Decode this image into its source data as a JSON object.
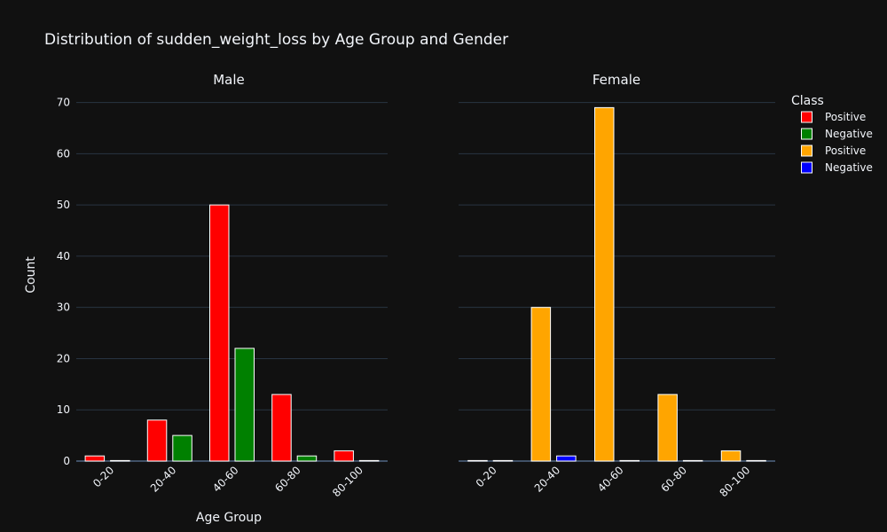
{
  "chart_data": {
    "type": "bar",
    "title": "Distribution of sudden_weight_loss by Age Group and Gender",
    "xlabel": "Age Group",
    "ylabel": "Count",
    "ylim": [
      0,
      72
    ],
    "yticks": [
      0,
      10,
      20,
      30,
      40,
      50,
      60,
      70
    ],
    "categories": [
      "0-20",
      "20-40",
      "40-60",
      "60-80",
      "80-100"
    ],
    "grid": true,
    "legend": {
      "title": "Class",
      "placement": "top-right",
      "entries": [
        {
          "label": "Positive",
          "color": "#ff0000"
        },
        {
          "label": "Negative",
          "color": "#008000"
        },
        {
          "label": "Positive",
          "color": "#ffa500"
        },
        {
          "label": "Negative",
          "color": "#0000ff"
        }
      ]
    },
    "panels": [
      {
        "subtitle": "Male",
        "series": [
          {
            "name": "Positive",
            "color": "#ff0000",
            "values": [
              1,
              8,
              50,
              13,
              2
            ]
          },
          {
            "name": "Negative",
            "color": "#008000",
            "values": [
              0,
              5,
              22,
              1,
              0
            ]
          }
        ]
      },
      {
        "subtitle": "Female",
        "series": [
          {
            "name": "Positive",
            "color": "#ffa500",
            "values": [
              0,
              30,
              69,
              13,
              2
            ]
          },
          {
            "name": "Negative",
            "color": "#0000ff",
            "values": [
              0,
              1,
              0,
              0,
              0
            ]
          }
        ]
      }
    ]
  }
}
